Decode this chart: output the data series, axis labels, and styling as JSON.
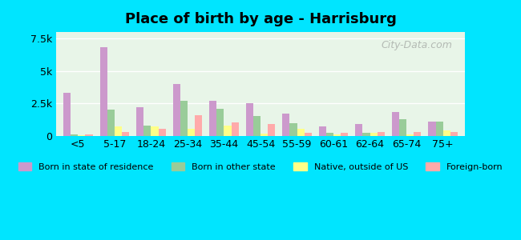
{
  "title": "Place of birth by age - Harrisburg",
  "categories": [
    "<5",
    "5-17",
    "18-24",
    "25-34",
    "35-44",
    "45-54",
    "55-59",
    "60-61",
    "62-64",
    "65-74",
    "75+"
  ],
  "series": {
    "Born in state of residence": [
      3300,
      6850,
      2200,
      4000,
      2700,
      2500,
      1700,
      700,
      900,
      1800,
      1100
    ],
    "Born in other state": [
      100,
      2000,
      800,
      2700,
      2100,
      1500,
      950,
      200,
      200,
      1300,
      1100
    ],
    "Native, outside of US": [
      50,
      700,
      700,
      500,
      800,
      150,
      500,
      100,
      200,
      100,
      400
    ],
    "Foreign-born": [
      100,
      300,
      500,
      1600,
      1000,
      900,
      200,
      200,
      300,
      300,
      250
    ]
  },
  "colors": {
    "Born in state of residence": "#cc99cc",
    "Born in other state": "#99cc99",
    "Native, outside of US": "#ffff88",
    "Foreign-born": "#ffaaaa"
  },
  "ylim": [
    0,
    8000
  ],
  "yticks": [
    0,
    2500,
    5000,
    7500
  ],
  "ytick_labels": [
    "0",
    "2.5k",
    "5k",
    "7.5k"
  ],
  "background_top": "#e8f5e9",
  "background_bottom": "#f0fff0",
  "outer_background": "#00e5ff",
  "bar_width": 0.2,
  "watermark": "City-Data.com"
}
